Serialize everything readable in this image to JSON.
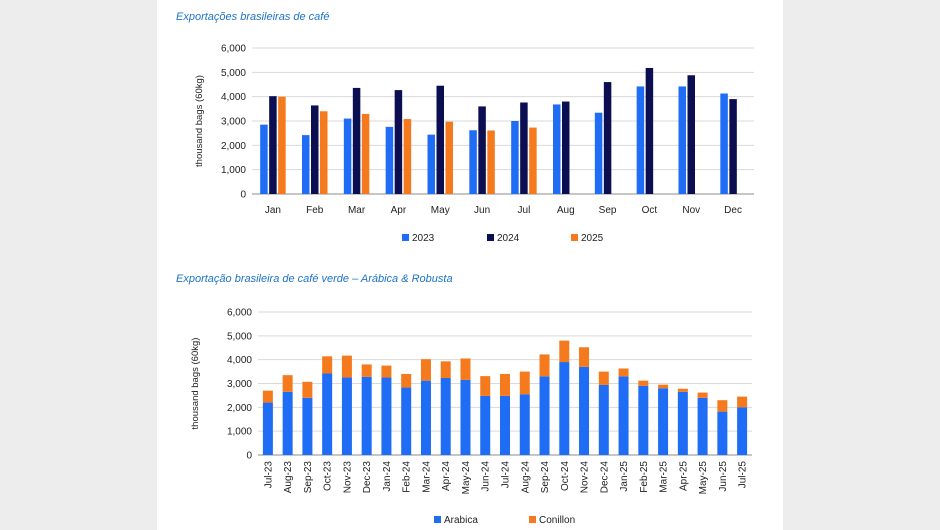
{
  "chart_data": [
    {
      "type": "bar",
      "title": "Exportações brasileiras de café",
      "ylabel": "thousand bags (60kg)",
      "xlabel": "",
      "ylim": [
        0,
        6000
      ],
      "yticks": [
        "0",
        "1,000",
        "2,000",
        "3,000",
        "4,000",
        "5,000",
        "6,000"
      ],
      "grid": true,
      "legend": "bottom",
      "categories": [
        "Jan",
        "Feb",
        "Mar",
        "Apr",
        "May",
        "Jun",
        "Jul",
        "Aug",
        "Sep",
        "Oct",
        "Nov",
        "Dec"
      ],
      "series": [
        {
          "name": "2023",
          "color": "#1f6cf5",
          "values": [
            2850,
            2420,
            3100,
            2760,
            2440,
            2620,
            3000,
            3680,
            3340,
            4420,
            4420,
            4130
          ]
        },
        {
          "name": "2024",
          "color": "#0b0f52",
          "values": [
            4020,
            3640,
            4360,
            4270,
            4450,
            3600,
            3760,
            3800,
            4600,
            5180,
            4880,
            3900
          ]
        },
        {
          "name": "2025",
          "color": "#f57a1e",
          "values": [
            4000,
            3400,
            3290,
            3080,
            2970,
            2610,
            2730,
            null,
            null,
            null,
            null,
            null
          ]
        }
      ]
    },
    {
      "type": "bar",
      "stacked": true,
      "title": "Exportação brasileira de café verde – Arábica & Robusta",
      "ylabel": "thousand bags (60kg)",
      "xlabel": "",
      "ylim": [
        0,
        6000
      ],
      "yticks": [
        "0",
        "1,000",
        "2,000",
        "3,000",
        "4,000",
        "5,000",
        "6,000"
      ],
      "grid": true,
      "legend": "bottom",
      "categories": [
        "Jul-23",
        "Aug-23",
        "Sep-23",
        "Oct-23",
        "Nov-23",
        "Dec-23",
        "Jan-24",
        "Feb-24",
        "Mar-24",
        "Apr-24",
        "May-24",
        "Jun-24",
        "Jul-24",
        "Aug-24",
        "Sep-24",
        "Oct-24",
        "Nov-24",
        "Dec-24",
        "Jan-25",
        "Feb-25",
        "Mar-25",
        "Apr-25",
        "May-25",
        "Jun-25",
        "Jul-25"
      ],
      "series": [
        {
          "name": "Arabica",
          "color": "#1f6cf5",
          "values": [
            2200,
            2650,
            2400,
            3420,
            3250,
            3280,
            3250,
            2830,
            3120,
            3230,
            3150,
            2480,
            2480,
            2550,
            3300,
            3900,
            3700,
            2940,
            3300,
            2900,
            2800,
            2650,
            2400,
            1820,
            2000
          ]
        },
        {
          "name": "Conillon",
          "color": "#f57a1e",
          "values": [
            500,
            700,
            670,
            720,
            920,
            520,
            500,
            570,
            900,
            700,
            900,
            830,
            920,
            950,
            920,
            900,
            820,
            560,
            330,
            220,
            150,
            130,
            220,
            480,
            450
          ]
        }
      ]
    }
  ]
}
